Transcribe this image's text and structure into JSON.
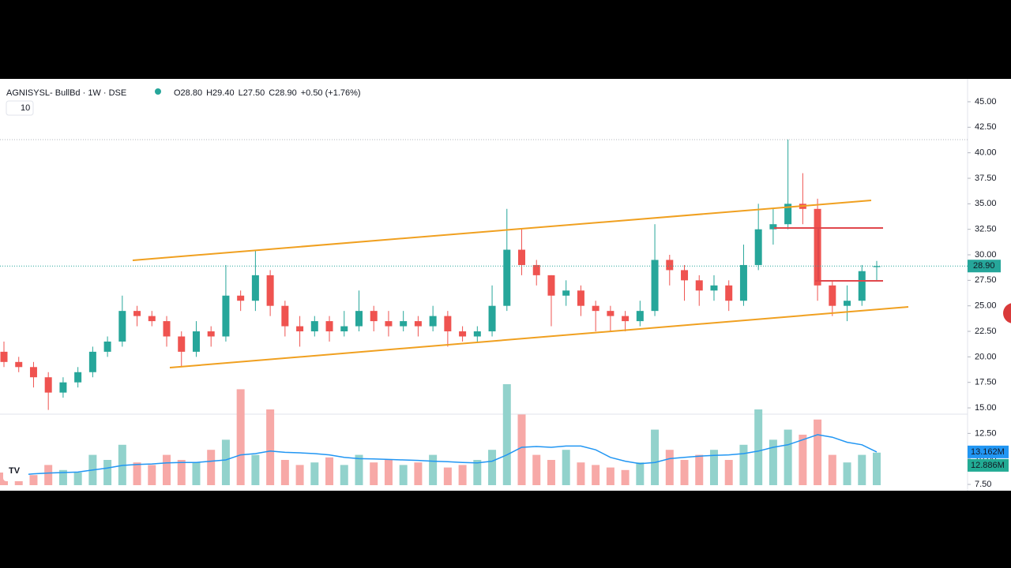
{
  "chart_data": {
    "type": "candlestick",
    "header": {
      "symbol": "AGNISYSL- BullBd · 1W · DSE",
      "ohlc": [
        "O28.80",
        "H29.40",
        "L27.50",
        "C28.90",
        "+0.50 (+1.76%)"
      ],
      "indicator_length": "10"
    },
    "ylim": [
      7.04,
      47.24
    ],
    "yticks": [
      {
        "value": 7.5,
        "label": "7.50"
      },
      {
        "value": 10,
        "label": "10.00"
      },
      {
        "value": 12.5,
        "label": "12.50"
      },
      {
        "value": 15,
        "label": "15.00"
      },
      {
        "value": 17.5,
        "label": "17.50"
      },
      {
        "value": 20,
        "label": "20.00"
      },
      {
        "value": 22.5,
        "label": "22.50"
      },
      {
        "value": 25,
        "label": "25.00"
      },
      {
        "value": 27.5,
        "label": "27.50"
      },
      {
        "value": 30,
        "label": "30.00"
      },
      {
        "value": 32.5,
        "label": "32.50"
      },
      {
        "value": 35,
        "label": "35.00"
      },
      {
        "value": 37.5,
        "label": "37.50"
      },
      {
        "value": 40,
        "label": "40.00"
      },
      {
        "value": 42.5,
        "label": "42.50"
      },
      {
        "value": 45,
        "label": "45.00"
      }
    ],
    "up_color": "#26a69a",
    "down_color": "#ef5350",
    "open": [
      20.5,
      19.5,
      19.0,
      18.0,
      16.5,
      17.5,
      18.5,
      20.5,
      21.5,
      24.5,
      24.0,
      23.5,
      22.0,
      20.5,
      22.5,
      22.0,
      26.0,
      25.5,
      28.0,
      25.0,
      23.0,
      22.5,
      23.5,
      22.5,
      23.0,
      24.5,
      23.5,
      23.0,
      23.5,
      23.0,
      24.0,
      22.5,
      22.0,
      22.5,
      25.0,
      30.5,
      29.0,
      28.0,
      26.0,
      26.5,
      25.0,
      24.5,
      24.0,
      23.5,
      24.5,
      29.5,
      28.5,
      27.5,
      26.5,
      27.0,
      25.5,
      29.0,
      32.5,
      33.0,
      35.0,
      34.5,
      27.0,
      25.0,
      25.5,
      28.8
    ],
    "high": [
      21.5,
      20.0,
      19.5,
      18.5,
      18.0,
      19.0,
      21.0,
      22.0,
      26.0,
      25.0,
      24.5,
      24.0,
      22.5,
      23.5,
      23.0,
      29.0,
      26.5,
      30.5,
      28.5,
      25.5,
      24.0,
      24.0,
      24.0,
      24.5,
      26.5,
      25.0,
      24.5,
      24.5,
      24.0,
      25.0,
      24.5,
      23.0,
      23.0,
      27.0,
      34.5,
      32.5,
      29.5,
      28.0,
      27.5,
      27.0,
      25.5,
      25.0,
      24.5,
      25.5,
      33.0,
      30.0,
      29.0,
      28.0,
      28.0,
      27.5,
      31.0,
      35.0,
      34.5,
      41.3,
      38.0,
      35.5,
      27.5,
      27.0,
      29.0,
      29.4
    ],
    "low": [
      19.0,
      18.5,
      17.0,
      14.8,
      16.0,
      17.0,
      18.0,
      20.0,
      21.0,
      23.0,
      23.0,
      21.0,
      19.0,
      20.0,
      21.0,
      21.5,
      24.5,
      24.5,
      24.0,
      22.0,
      21.0,
      22.0,
      21.5,
      22.0,
      22.5,
      22.5,
      22.0,
      22.5,
      22.0,
      22.5,
      21.0,
      21.5,
      21.5,
      22.0,
      24.5,
      28.0,
      27.0,
      23.0,
      25.0,
      24.0,
      22.5,
      22.5,
      22.5,
      23.0,
      24.0,
      27.0,
      25.5,
      25.0,
      25.5,
      24.5,
      25.0,
      28.5,
      31.0,
      32.5,
      33.0,
      25.5,
      24.0,
      23.5,
      25.0,
      27.5
    ],
    "close": [
      19.5,
      19.0,
      18.0,
      16.5,
      17.5,
      18.5,
      20.5,
      21.5,
      24.5,
      24.0,
      23.5,
      22.0,
      20.5,
      22.5,
      22.0,
      26.0,
      25.5,
      28.0,
      25.0,
      23.0,
      22.5,
      23.5,
      22.5,
      23.0,
      24.5,
      23.5,
      23.0,
      23.5,
      23.0,
      24.0,
      22.5,
      22.0,
      22.5,
      25.0,
      30.5,
      29.0,
      28.0,
      26.0,
      26.5,
      25.0,
      24.5,
      24.0,
      23.5,
      24.5,
      29.5,
      28.5,
      27.5,
      26.5,
      27.0,
      25.5,
      29.0,
      32.5,
      33.0,
      35.0,
      34.5,
      27.0,
      25.0,
      25.5,
      28.4,
      28.9
    ],
    "last_price_label": "28.90",
    "volume": {
      "vlim": [
        0,
        40
      ],
      "up_color": "#92d2cc",
      "down_color": "#f7a9a7",
      "values": [
        5,
        3,
        4,
        8,
        6,
        5,
        12,
        10,
        16,
        9,
        8,
        12,
        10,
        9,
        14,
        18,
        38,
        12,
        30,
        10,
        8,
        9,
        11,
        8,
        12,
        9,
        10,
        8,
        9,
        12,
        7,
        8,
        10,
        14,
        40,
        28,
        12,
        10,
        14,
        9,
        8,
        7,
        6,
        9,
        22,
        14,
        10,
        12,
        14,
        10,
        16,
        30,
        18,
        22,
        20,
        26,
        12,
        9,
        12,
        12.886
      ],
      "last_label": "12.886M"
    },
    "volume_ma": {
      "color": "#2196f3",
      "values": [
        4,
        4,
        4.5,
        4.8,
        5,
        5.2,
        6,
        6.8,
        7.8,
        8.2,
        8.4,
        8.8,
        9,
        9,
        9.5,
        10,
        12,
        12.5,
        13.5,
        13,
        12.8,
        12.5,
        12,
        11,
        10.5,
        10.4,
        10.2,
        10,
        9.8,
        9.5,
        9.3,
        9,
        8.8,
        9.5,
        12,
        15,
        15.3,
        15,
        15.5,
        15.5,
        14,
        11,
        9.5,
        8.5,
        9,
        10.5,
        11,
        11.5,
        11.8,
        12,
        12.5,
        13.5,
        15,
        16,
        18,
        20,
        19,
        17,
        16,
        13.162
      ],
      "last_label": "13.162M"
    }
  }
}
